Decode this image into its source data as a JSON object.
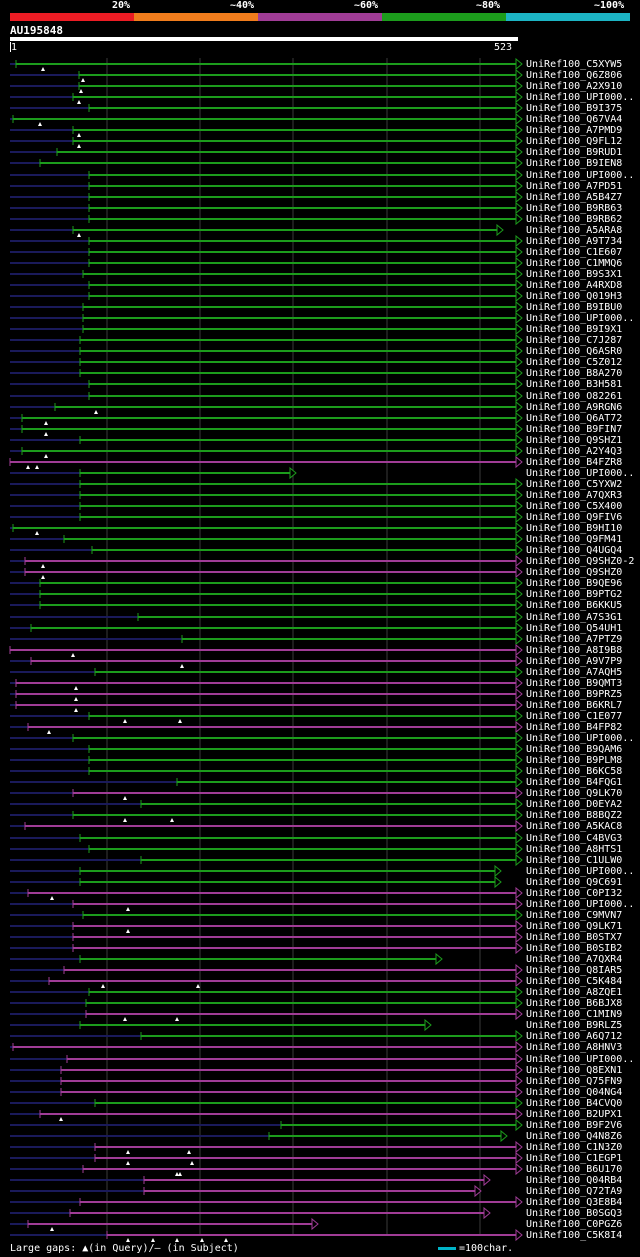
{
  "legend": [
    {
      "label": "20%",
      "color": "#ec1c24"
    },
    {
      "label": "~40%",
      "color": "#f07c1c"
    },
    {
      "label": "~60%",
      "color": "#a03c96"
    },
    {
      "label": "~80%",
      "color": "#1c9c1c"
    },
    {
      "label": "~100%",
      "color": "#1cb4c4"
    }
  ],
  "query": {
    "name": "AU195848",
    "start": "1",
    "end": "523"
  },
  "colors": {
    "green": "#1c9c1c",
    "purple": "#a03c96",
    "dark": "#1a1a5a",
    "grid": "#3a3a3a"
  },
  "footer": {
    "gaps": "Large gaps: ▲(in Query)/– (in Subject)",
    "scale": "=100char."
  },
  "hits": [
    {
      "label": "UniRef100_C5XYW5",
      "c": "g",
      "s": 16,
      "e": 516,
      "m": [
        43
      ],
      "a": 1
    },
    {
      "label": "UniRef100_Q6Z806",
      "c": "g",
      "s": 79,
      "e": 516,
      "m": [
        83
      ],
      "a": 1
    },
    {
      "label": "UniRef100_A2X910",
      "c": "g",
      "s": 79,
      "e": 516,
      "m": [
        81
      ],
      "a": 1
    },
    {
      "label": "UniRef100_UPI000..",
      "c": "g",
      "s": 73,
      "e": 516,
      "m": [
        79
      ],
      "a": 1
    },
    {
      "label": "UniRef100_B9I375",
      "c": "g",
      "s": 89,
      "e": 516,
      "m": [],
      "a": 1
    },
    {
      "label": "UniRef100_Q67VA4",
      "c": "g",
      "s": 13,
      "e": 516,
      "m": [
        40
      ],
      "a": 1
    },
    {
      "label": "UniRef100_A7PMD9",
      "c": "g",
      "s": 73,
      "e": 516,
      "m": [
        79
      ],
      "a": 1
    },
    {
      "label": "UniRef100_Q9FL12",
      "c": "g",
      "s": 73,
      "e": 516,
      "m": [
        79
      ],
      "a": 1
    },
    {
      "label": "UniRef100_B9RUD1",
      "c": "g",
      "s": 57,
      "e": 516,
      "m": [],
      "a": 1
    },
    {
      "label": "UniRef100_B9IEN8",
      "c": "g",
      "s": 40,
      "e": 516,
      "m": [],
      "a": 1
    },
    {
      "label": "UniRef100_UPI000..",
      "c": "g",
      "s": 89,
      "e": 516,
      "m": [],
      "a": 1
    },
    {
      "label": "UniRef100_A7PD51",
      "c": "g",
      "s": 89,
      "e": 516,
      "m": [],
      "a": 1
    },
    {
      "label": "UniRef100_A5B4Z7",
      "c": "g",
      "s": 89,
      "e": 516,
      "m": [],
      "a": 1
    },
    {
      "label": "UniRef100_B9RB63",
      "c": "g",
      "s": 89,
      "e": 516,
      "m": [],
      "a": 1
    },
    {
      "label": "UniRef100_B9RB62",
      "c": "g",
      "s": 89,
      "e": 516,
      "m": [],
      "a": 1
    },
    {
      "label": "UniRef100_A5ARA8",
      "c": "g",
      "s": 73,
      "e": 497,
      "m": [
        79
      ],
      "a": 1
    },
    {
      "label": "UniRef100_A9T734",
      "c": "g",
      "s": 89,
      "e": 516,
      "m": [],
      "a": 1
    },
    {
      "label": "UniRef100_C1E607",
      "c": "g",
      "s": 89,
      "e": 516,
      "m": [],
      "a": 1
    },
    {
      "label": "UniRef100_C1MMQ6",
      "c": "g",
      "s": 89,
      "e": 516,
      "m": [],
      "a": 1
    },
    {
      "label": "UniRef100_B9S3X1",
      "c": "g",
      "s": 83,
      "e": 516,
      "m": [],
      "a": 1
    },
    {
      "label": "UniRef100_A4RXD8",
      "c": "g",
      "s": 89,
      "e": 516,
      "m": [],
      "a": 1
    },
    {
      "label": "UniRef100_Q019H3",
      "c": "g",
      "s": 89,
      "e": 516,
      "m": [],
      "a": 1
    },
    {
      "label": "UniRef100_B9IBU0",
      "c": "g",
      "s": 83,
      "e": 516,
      "m": [],
      "a": 1
    },
    {
      "label": "UniRef100_UPI000..",
      "c": "g",
      "s": 83,
      "e": 516,
      "m": [],
      "a": 1
    },
    {
      "label": "UniRef100_B9I9X1",
      "c": "g",
      "s": 83,
      "e": 516,
      "m": [],
      "a": 1
    },
    {
      "label": "UniRef100_C7J287",
      "c": "g",
      "s": 80,
      "e": 516,
      "m": [],
      "a": 1
    },
    {
      "label": "UniRef100_Q6ASR0",
      "c": "g",
      "s": 80,
      "e": 516,
      "m": [],
      "a": 1
    },
    {
      "label": "UniRef100_C5Z012",
      "c": "g",
      "s": 80,
      "e": 516,
      "m": [],
      "a": 1
    },
    {
      "label": "UniRef100_B8A270",
      "c": "g",
      "s": 80,
      "e": 516,
      "m": [],
      "a": 1
    },
    {
      "label": "UniRef100_B3H581",
      "c": "g",
      "s": 89,
      "e": 516,
      "m": [],
      "a": 1
    },
    {
      "label": "UniRef100_O82261",
      "c": "g",
      "s": 89,
      "e": 516,
      "m": [],
      "a": 1
    },
    {
      "label": "UniRef100_A9RGN6",
      "c": "g",
      "s": 55,
      "e": 516,
      "m": [
        96
      ],
      "a": 1
    },
    {
      "label": "UniRef100_Q6AT72",
      "c": "g",
      "s": 22,
      "e": 516,
      "m": [
        46
      ],
      "a": 1
    },
    {
      "label": "UniRef100_B9FIN7",
      "c": "g",
      "s": 22,
      "e": 516,
      "m": [
        46
      ],
      "a": 1
    },
    {
      "label": "UniRef100_Q9SHZ1",
      "c": "g",
      "s": 80,
      "e": 516,
      "m": [],
      "a": 1
    },
    {
      "label": "UniRef100_A2Y4Q3",
      "c": "g",
      "s": 22,
      "e": 516,
      "m": [
        46
      ],
      "a": 1
    },
    {
      "label": "UniRef100_B4FZR8",
      "c": "p",
      "s": 10,
      "e": 516,
      "m": [
        28,
        37
      ],
      "a": 1
    },
    {
      "label": "UniRef100_UPI000..",
      "c": "g",
      "s": 80,
      "e": 290,
      "m": [],
      "a": 1
    },
    {
      "label": "UniRef100_C5YXW2",
      "c": "g",
      "s": 80,
      "e": 516,
      "m": [],
      "a": 1
    },
    {
      "label": "UniRef100_A7QXR3",
      "c": "g",
      "s": 80,
      "e": 516,
      "m": [],
      "a": 1
    },
    {
      "label": "UniRef100_C5X400",
      "c": "g",
      "s": 80,
      "e": 516,
      "m": [],
      "a": 1
    },
    {
      "label": "UniRef100_Q9FIV6",
      "c": "g",
      "s": 80,
      "e": 516,
      "m": [],
      "a": 1
    },
    {
      "label": "UniRef100_B9HI10",
      "c": "g",
      "s": 13,
      "e": 516,
      "m": [
        37
      ],
      "a": 1
    },
    {
      "label": "UniRef100_Q9FM41",
      "c": "g",
      "s": 64,
      "e": 516,
      "m": [],
      "a": 1
    },
    {
      "label": "UniRef100_Q4UGQ4",
      "c": "g",
      "s": 92,
      "e": 516,
      "m": [],
      "a": 1
    },
    {
      "label": "UniRef100_Q9SHZ0-2",
      "c": "p",
      "s": 25,
      "e": 516,
      "m": [
        43
      ],
      "a": 1
    },
    {
      "label": "UniRef100_Q9SHZ0",
      "c": "p",
      "s": 25,
      "e": 516,
      "m": [
        43
      ],
      "a": 1
    },
    {
      "label": "UniRef100_B9QE96",
      "c": "g",
      "s": 40,
      "e": 516,
      "m": [],
      "a": 1
    },
    {
      "label": "UniRef100_B9PTG2",
      "c": "g",
      "s": 40,
      "e": 516,
      "m": [],
      "a": 1
    },
    {
      "label": "UniRef100_B6KKU5",
      "c": "g",
      "s": 40,
      "e": 516,
      "m": [],
      "a": 1
    },
    {
      "label": "UniRef100_A7S3G1",
      "c": "g",
      "s": 138,
      "e": 516,
      "m": [],
      "a": 1
    },
    {
      "label": "UniRef100_Q54UH1",
      "c": "g",
      "s": 31,
      "e": 516,
      "m": [],
      "a": 1
    },
    {
      "label": "UniRef100_A7PTZ9",
      "c": "g",
      "s": 182,
      "e": 516,
      "m": [],
      "a": 1
    },
    {
      "label": "UniRef100_A8I9B8",
      "c": "p",
      "s": 10,
      "e": 516,
      "m": [
        73
      ],
      "a": 1
    },
    {
      "label": "UniRef100_A9V7P9",
      "c": "p",
      "s": 31,
      "e": 516,
      "m": [
        182
      ],
      "a": 1
    },
    {
      "label": "UniRef100_A7AQH5",
      "c": "g",
      "s": 95,
      "e": 516,
      "m": [],
      "a": 1
    },
    {
      "label": "UniRef100_B9QMT3",
      "c": "p",
      "s": 16,
      "e": 516,
      "m": [
        76
      ],
      "a": 1
    },
    {
      "label": "UniRef100_B9PRZ5",
      "c": "p",
      "s": 16,
      "e": 516,
      "m": [
        76
      ],
      "a": 1
    },
    {
      "label": "UniRef100_B6KRL7",
      "c": "p",
      "s": 16,
      "e": 516,
      "m": [
        76
      ],
      "a": 1
    },
    {
      "label": "UniRef100_C1E077",
      "c": "g",
      "s": 89,
      "e": 516,
      "m": [
        125,
        180
      ],
      "a": 1
    },
    {
      "label": "UniRef100_B4FP82",
      "c": "p",
      "s": 28,
      "e": 516,
      "m": [
        49
      ],
      "a": 1
    },
    {
      "label": "UniRef100_UPI000..",
      "c": "g",
      "s": 73,
      "e": 516,
      "m": [],
      "a": 1
    },
    {
      "label": "UniRef100_B9QAM6",
      "c": "g",
      "s": 89,
      "e": 516,
      "m": [],
      "a": 1
    },
    {
      "label": "UniRef100_B9PLM8",
      "c": "g",
      "s": 89,
      "e": 516,
      "m": [],
      "a": 1
    },
    {
      "label": "UniRef100_B6KC58",
      "c": "g",
      "s": 89,
      "e": 516,
      "m": [],
      "a": 1
    },
    {
      "label": "UniRef100_B4FQG1",
      "c": "g",
      "s": 177,
      "e": 516,
      "m": [],
      "a": 1
    },
    {
      "label": "UniRef100_Q9LK70",
      "c": "p",
      "s": 73,
      "e": 516,
      "m": [
        125
      ],
      "a": 1
    },
    {
      "label": "UniRef100_D0EYA2",
      "c": "g",
      "s": 141,
      "e": 516,
      "m": [],
      "a": 1
    },
    {
      "label": "UniRef100_B8BQZ2",
      "c": "g",
      "s": 73,
      "e": 516,
      "m": [
        125,
        172
      ],
      "a": 1
    },
    {
      "label": "UniRef100_A5KAC8",
      "c": "p",
      "s": 25,
      "e": 516,
      "m": [],
      "a": 1
    },
    {
      "label": "UniRef100_C4BVG3",
      "c": "g",
      "s": 80,
      "e": 516,
      "m": [],
      "a": 1
    },
    {
      "label": "UniRef100_A8HTS1",
      "c": "g",
      "s": 89,
      "e": 516,
      "m": [],
      "a": 1
    },
    {
      "label": "UniRef100_C1ULW0",
      "c": "g",
      "s": 141,
      "e": 516,
      "m": [],
      "a": 1
    },
    {
      "label": "UniRef100_UPI000..",
      "c": "g",
      "s": 80,
      "e": 495,
      "m": [],
      "a": 1
    },
    {
      "label": "UniRef100_Q9C691",
      "c": "g",
      "s": 80,
      "e": 495,
      "m": [],
      "a": 1
    },
    {
      "label": "UniRef100_C0PI32",
      "c": "p",
      "s": 28,
      "e": 516,
      "m": [
        52
      ],
      "a": 1
    },
    {
      "label": "UniRef100_UPI000..",
      "c": "p",
      "s": 73,
      "e": 516,
      "m": [
        128
      ],
      "a": 1
    },
    {
      "label": "UniRef100_C9MVN7",
      "c": "g",
      "s": 83,
      "e": 516,
      "m": [],
      "a": 1
    },
    {
      "label": "UniRef100_Q9LK71",
      "c": "p",
      "s": 73,
      "e": 516,
      "m": [
        128
      ],
      "a": 1
    },
    {
      "label": "UniRef100_B0STX7",
      "c": "p",
      "s": 73,
      "e": 516,
      "m": [],
      "a": 1
    },
    {
      "label": "UniRef100_B0SIB2",
      "c": "p",
      "s": 73,
      "e": 516,
      "m": [],
      "a": 1
    },
    {
      "label": "UniRef100_A7QXR4",
      "c": "g",
      "s": 80,
      "e": 436,
      "m": [],
      "a": 1
    },
    {
      "label": "UniRef100_Q8IAR5",
      "c": "p",
      "s": 64,
      "e": 516,
      "m": [],
      "a": 1
    },
    {
      "label": "UniRef100_C5K484",
      "c": "p",
      "s": 49,
      "e": 516,
      "m": [
        103,
        198
      ],
      "a": 1
    },
    {
      "label": "UniRef100_A8ZQE1",
      "c": "g",
      "s": 89,
      "e": 516,
      "m": [],
      "a": 1
    },
    {
      "label": "UniRef100_B6BJX8",
      "c": "g",
      "s": 86,
      "e": 516,
      "m": [],
      "a": 1
    },
    {
      "label": "UniRef100_C1MIN9",
      "c": "p",
      "s": 86,
      "e": 516,
      "m": [
        125,
        177
      ],
      "a": 1
    },
    {
      "label": "UniRef100_B9RLZ5",
      "c": "g",
      "s": 80,
      "e": 425,
      "m": [],
      "a": 1
    },
    {
      "label": "UniRef100_A6Q712",
      "c": "g",
      "s": 141,
      "e": 516,
      "m": [],
      "a": 1
    },
    {
      "label": "UniRef100_A8HNV3",
      "c": "p",
      "s": 13,
      "e": 516,
      "m": [],
      "a": 1
    },
    {
      "label": "UniRef100_UPI000..",
      "c": "p",
      "s": 67,
      "e": 516,
      "m": [],
      "a": 1
    },
    {
      "label": "UniRef100_Q8EXN1",
      "c": "p",
      "s": 61,
      "e": 516,
      "m": [],
      "a": 1
    },
    {
      "label": "UniRef100_Q75FN9",
      "c": "p",
      "s": 61,
      "e": 516,
      "m": [],
      "a": 1
    },
    {
      "label": "UniRef100_Q04NG4",
      "c": "p",
      "s": 61,
      "e": 516,
      "m": [],
      "a": 1
    },
    {
      "label": "UniRef100_B4CVQ0",
      "c": "g",
      "s": 95,
      "e": 516,
      "m": [],
      "a": 1
    },
    {
      "label": "UniRef100_B2UPX1",
      "c": "p",
      "s": 40,
      "e": 516,
      "m": [
        61
      ],
      "a": 1
    },
    {
      "label": "UniRef100_B9F2V6",
      "c": "g",
      "s": 281,
      "e": 516,
      "m": [],
      "a": 1
    },
    {
      "label": "UniRef100_Q4N8Z6",
      "c": "g",
      "s": 269,
      "e": 501,
      "m": [],
      "a": 1
    },
    {
      "label": "UniRef100_C1N3Z0",
      "c": "p",
      "s": 95,
      "e": 516,
      "m": [
        128,
        189
      ],
      "a": 1
    },
    {
      "label": "UniRef100_C1EGP1",
      "c": "p",
      "s": 95,
      "e": 516,
      "m": [
        128,
        192
      ],
      "a": 1
    },
    {
      "label": "UniRef100_B6U170",
      "c": "p",
      "s": 83,
      "e": 516,
      "m": [
        177,
        180
      ],
      "a": 1
    },
    {
      "label": "UniRef100_Q04RB4",
      "c": "p",
      "s": 144,
      "e": 484,
      "m": [],
      "a": 1
    },
    {
      "label": "UniRef100_Q72TA9",
      "c": "p",
      "s": 144,
      "e": 475,
      "m": [],
      "a": 1
    },
    {
      "label": "UniRef100_Q3E8B4",
      "c": "p",
      "s": 80,
      "e": 516,
      "m": [],
      "a": 1
    },
    {
      "label": "UniRef100_B0SGQ3",
      "c": "p",
      "s": 70,
      "e": 484,
      "m": [],
      "a": 1
    },
    {
      "label": "UniRef100_C0PGZ6",
      "c": "p",
      "s": 28,
      "e": 312,
      "m": [
        52
      ],
      "a": 1
    },
    {
      "label": "UniRef100_C5K8I4",
      "c": "p",
      "s": 107,
      "e": 516,
      "m": [
        128,
        153,
        177,
        202,
        226
      ],
      "a": 1
    }
  ]
}
